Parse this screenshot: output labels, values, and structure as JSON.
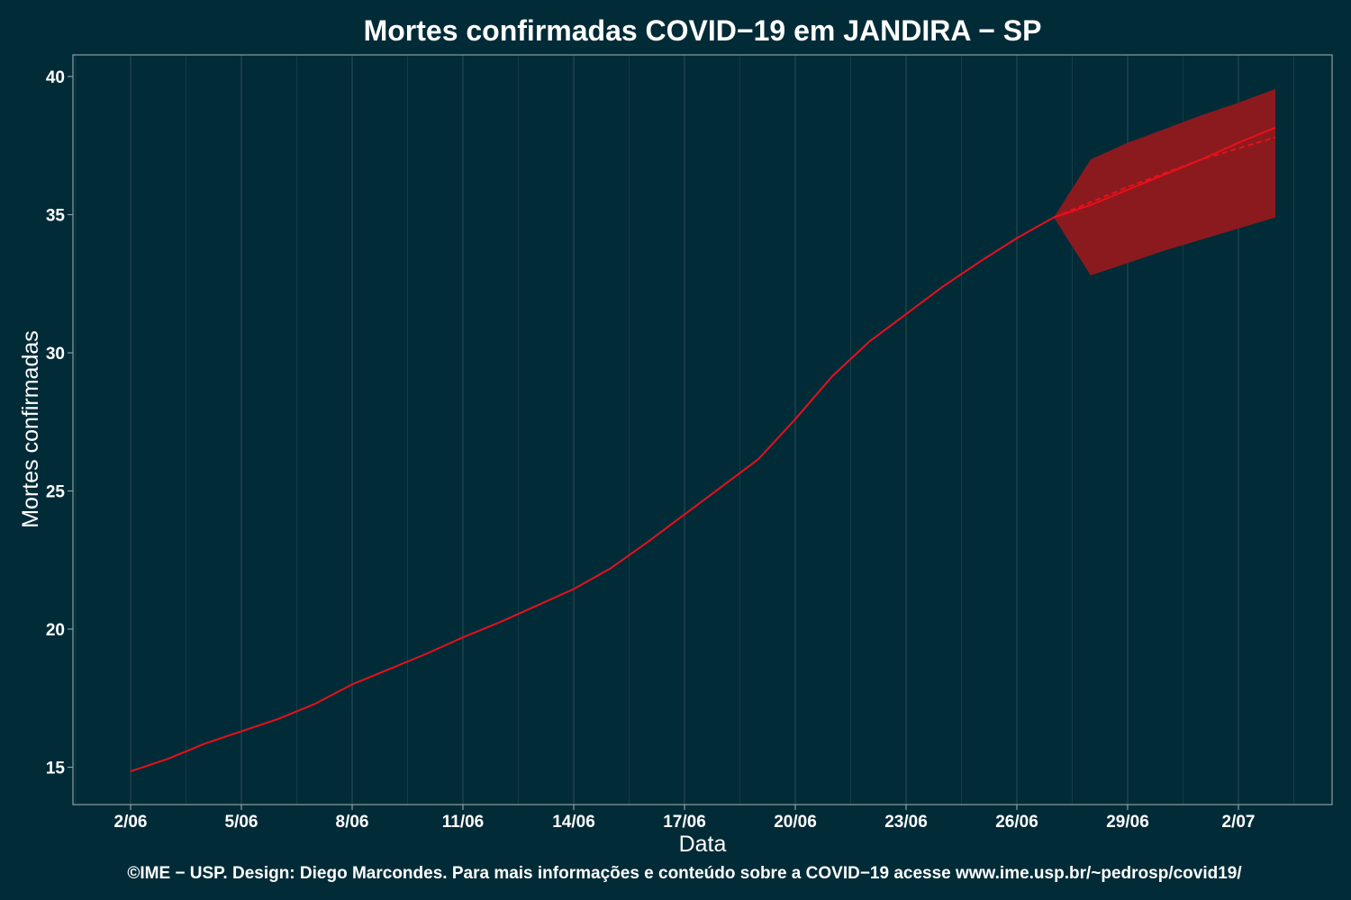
{
  "chart_data": {
    "type": "line",
    "title": "Mortes confirmadas COVID−19 em JANDIRA − SP",
    "xlabel": "Data",
    "ylabel": "Mortes confirmadas",
    "caption": "©IME − USP. Design: Diego Marcondes. Para mais informações e conteúdo sobre a COVID−19 acesse www.ime.usp.br/~pedrosp/covid19/",
    "x_tick_labels": [
      "2/06",
      "5/06",
      "8/06",
      "11/06",
      "14/06",
      "17/06",
      "20/06",
      "23/06",
      "26/06",
      "29/06",
      "2/07"
    ],
    "y_ticks": [
      15,
      20,
      25,
      30,
      35,
      40
    ],
    "xlim": [
      "2020-06-02",
      "2020-07-03"
    ],
    "ylim": [
      14.0,
      40.8
    ],
    "grid": "vertical",
    "colors": {
      "background": "#022b38",
      "line": "#e8101a",
      "band": "#8b1a1e",
      "axis_text": "#ffffff",
      "frame": "#8a9ea2",
      "grid": "#1b414b"
    },
    "series": [
      {
        "role": "observed",
        "style": "solid",
        "x": [
          "2020-06-02",
          "2020-06-03",
          "2020-06-04",
          "2020-06-05",
          "2020-06-06",
          "2020-06-07",
          "2020-06-08",
          "2020-06-09",
          "2020-06-10",
          "2020-06-11",
          "2020-06-12",
          "2020-06-13",
          "2020-06-14",
          "2020-06-15",
          "2020-06-16",
          "2020-06-17",
          "2020-06-18",
          "2020-06-19",
          "2020-06-20",
          "2020-06-21",
          "2020-06-22",
          "2020-06-23",
          "2020-06-24",
          "2020-06-25",
          "2020-06-26",
          "2020-06-27"
        ],
        "y": [
          14.85,
          15.3,
          15.85,
          16.3,
          16.75,
          17.3,
          18.0,
          18.55,
          19.1,
          19.7,
          20.25,
          20.85,
          21.45,
          22.2,
          23.15,
          24.15,
          25.15,
          26.15,
          27.6,
          29.15,
          30.4,
          31.4,
          32.4,
          33.3,
          34.15,
          34.9
        ]
      },
      {
        "role": "forecast",
        "style": "solid",
        "x": [
          "2020-06-27",
          "2020-06-28",
          "2020-06-29",
          "2020-06-30",
          "2020-07-01",
          "2020-07-02",
          "2020-07-03"
        ],
        "y": [
          34.9,
          35.35,
          35.9,
          36.45,
          37.0,
          37.6,
          38.15
        ]
      },
      {
        "role": "forecast_alt",
        "style": "dashed",
        "x": [
          "2020-06-27",
          "2020-06-28",
          "2020-06-29",
          "2020-06-30",
          "2020-07-01",
          "2020-07-02",
          "2020-07-03"
        ],
        "y": [
          34.9,
          35.45,
          36.0,
          36.5,
          37.0,
          37.4,
          37.8
        ]
      }
    ],
    "band": {
      "x": [
        "2020-06-27",
        "2020-06-28",
        "2020-06-29",
        "2020-06-30",
        "2020-07-01",
        "2020-07-02",
        "2020-07-03"
      ],
      "upper": [
        34.9,
        37.0,
        37.6,
        38.1,
        38.6,
        39.05,
        39.55
      ],
      "lower": [
        34.9,
        32.8,
        33.25,
        33.7,
        34.1,
        34.5,
        34.9
      ]
    }
  }
}
